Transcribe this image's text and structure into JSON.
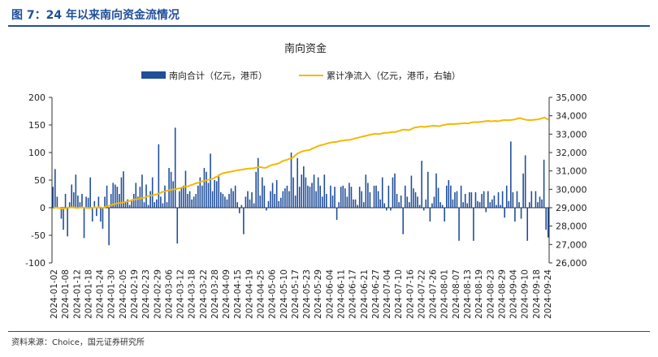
{
  "figure": {
    "title": "图 7：24 年以来南向资金流情况",
    "source": "资料来源：Choice，国元证券研究所"
  },
  "colors": {
    "bar": "#1f4e9a",
    "line": "#f5b800",
    "axis": "#333333",
    "title_rule": "#1f4e9a"
  },
  "chart_data": {
    "type": "bar",
    "title": "南向资金",
    "legend_position": "top",
    "grid": false,
    "ylim": [
      -100,
      200
    ],
    "yticks": [
      -100,
      -50,
      0,
      50,
      100,
      150,
      200
    ],
    "y2lim": [
      26000,
      35000
    ],
    "y2ticks": [
      "26,000",
      "27,000",
      "28,000",
      "29,000",
      "30,000",
      "31,000",
      "32,000",
      "33,000",
      "34,000",
      "35,000"
    ],
    "x_tick_labels": [
      "2024-01-02",
      "2024-01-08",
      "2024-01-12",
      "2024-01-18",
      "2024-01-24",
      "2024-01-30",
      "2024-02-05",
      "2024-02-19",
      "2024-02-23",
      "2024-02-29",
      "2024-03-06",
      "2024-03-12",
      "2024-03-18",
      "2024-03-22",
      "2024-03-28",
      "2024-04-09",
      "2024-04-15",
      "2024-04-19",
      "2024-04-25",
      "2024-05-06",
      "2024-05-10",
      "2024-05-17",
      "2024-05-23",
      "2024-05-29",
      "2024-06-04",
      "2024-06-11",
      "2024-06-17",
      "2024-06-21",
      "2024-06-27",
      "2024-07-04",
      "2024-07-10",
      "2024-07-16",
      "2024-07-22",
      "2024-07-26",
      "2024-08-01",
      "2024-08-07",
      "2024-08-13",
      "2024-08-19",
      "2024-08-23",
      "2024-08-29",
      "2024-09-04",
      "2024-09-10",
      "2024-09-18",
      "2024-09-24"
    ],
    "series": [
      {
        "name": "南向合计（亿元，港币）",
        "type": "bar",
        "axis": "left",
        "values": [
          38,
          70,
          20,
          0,
          -20,
          -40,
          25,
          -52,
          10,
          42,
          28,
          60,
          22,
          10,
          25,
          -55,
          20,
          18,
          55,
          -25,
          12,
          -15,
          20,
          -25,
          -38,
          20,
          40,
          -68,
          25,
          45,
          42,
          38,
          25,
          55,
          66,
          10,
          15,
          5,
          15,
          25,
          45,
          20,
          38,
          60,
          10,
          42,
          5,
          30,
          55,
          10,
          15,
          115,
          20,
          8,
          40,
          10,
          72,
          65,
          48,
          145,
          -65,
          30,
          35,
          40,
          67,
          25,
          30,
          15,
          20,
          25,
          40,
          55,
          40,
          72,
          65,
          45,
          98,
          30,
          50,
          48,
          60,
          28,
          25,
          20,
          15,
          25,
          35,
          30,
          40,
          10,
          -10,
          5,
          -48,
          20,
          30,
          15,
          28,
          8,
          65,
          90,
          22,
          55,
          40,
          -5,
          12,
          30,
          45,
          25,
          50,
          12,
          18,
          30,
          35,
          40,
          30,
          100,
          55,
          22,
          90,
          38,
          60,
          75,
          55,
          40,
          38,
          45,
          60,
          30,
          55,
          40,
          20,
          60,
          25,
          0,
          40,
          22,
          38,
          -22,
          10,
          38,
          40,
          35,
          20,
          45,
          38,
          15,
          15,
          5,
          38,
          30,
          10,
          60,
          45,
          28,
          0,
          40,
          40,
          30,
          15,
          55,
          8,
          -5,
          40,
          -5,
          55,
          62,
          25,
          10,
          22,
          -48,
          40,
          20,
          10,
          58,
          35,
          28,
          20,
          5,
          85,
          -5,
          15,
          65,
          -25,
          8,
          20,
          62,
          36,
          10,
          5,
          -25,
          40,
          50,
          40,
          15,
          28,
          30,
          -60,
          40,
          10,
          25,
          8,
          28,
          28,
          -60,
          28,
          12,
          10,
          25,
          30,
          -8,
          30,
          10,
          15,
          22,
          5,
          28,
          5,
          30,
          -18,
          40,
          12,
          120,
          28,
          -25,
          30,
          10,
          -20,
          62,
          95,
          -60,
          10,
          30,
          0,
          30,
          10,
          20,
          15,
          87,
          -40,
          -54
        ]
      },
      {
        "name": "累计净流入（亿元，港币，右轴）",
        "type": "line",
        "axis": "right",
        "values": [
          28950,
          29000,
          29010,
          28990,
          28970,
          28950,
          28960,
          28970,
          29010,
          29000,
          29020,
          29030,
          29000,
          28990,
          28985,
          29010,
          29020,
          29005,
          29000,
          28990,
          28980,
          28990,
          29005,
          29030,
          29000,
          29040,
          29030,
          28990,
          29010,
          29050,
          29080,
          29110,
          29140,
          29170,
          29200,
          29230,
          29250,
          29255,
          29270,
          29290,
          29320,
          29340,
          29360,
          29380,
          29420,
          29450,
          29455,
          29470,
          29500,
          29520,
          29540,
          29560,
          29620,
          29650,
          29670,
          29670,
          29700,
          29720,
          29760,
          29790,
          29850,
          29870,
          29890,
          29920,
          29950,
          29970,
          29990,
          30000,
          30020,
          30040,
          30060,
          30100,
          30120,
          30150,
          30160,
          30180,
          30230,
          30250,
          30300,
          30330,
          30350,
          30390,
          30430,
          30450,
          30480,
          30510,
          30530,
          30550,
          30580,
          30620,
          30680,
          30700,
          30800,
          30850,
          30880,
          30900,
          30920,
          30940,
          30960,
          30980,
          31000,
          31020,
          31040,
          31050,
          31070,
          31090,
          31100,
          31120,
          31130,
          31135,
          31140,
          31155,
          31180,
          31200,
          31210,
          31200,
          31170,
          31170,
          31190,
          31260,
          31300,
          31330,
          31350,
          31380,
          31400,
          31440,
          31500,
          31550,
          31580,
          31600,
          31650,
          31680,
          31700,
          31800,
          31880,
          31960,
          32000,
          32050,
          32080,
          32100,
          32120,
          32130,
          32160,
          32220,
          32250,
          32300,
          32350,
          32380,
          32400,
          32430,
          32460,
          32490,
          32510,
          32540,
          32560,
          32580,
          32570,
          32600,
          32620,
          32640,
          32650,
          32670,
          32680,
          32680,
          32700,
          32720,
          32750,
          32780,
          32800,
          32830,
          32850,
          32880,
          32900,
          32920,
          32950,
          32970,
          32990,
          33010,
          33020,
          33010,
          33015,
          33030,
          33060,
          33075,
          33070,
          33080,
          33100,
          33120,
          33115,
          33120,
          33150,
          33180,
          33220,
          33240,
          33250,
          33230,
          33220,
          33250,
          33300,
          33340,
          33370,
          33370,
          33400,
          33410,
          33400,
          33390,
          33410,
          33420,
          33440,
          33450,
          33455,
          33450,
          33440,
          33430,
          33470,
          33490,
          33510,
          33530,
          33545,
          33550,
          33550,
          33545,
          33560,
          33560,
          33570,
          33580,
          33590,
          33600,
          33590,
          33580,
          33620,
          33640,
          33650,
          33660,
          33650,
          33660,
          33670,
          33680,
          33700,
          33710,
          33720,
          33700,
          33705,
          33710,
          33720,
          33700,
          33710,
          33740,
          33760,
          33770,
          33760,
          33760,
          33770,
          33780,
          33790,
          33810,
          33850,
          33870,
          33860,
          33820,
          33800,
          33780,
          33770,
          33760,
          33770,
          33780,
          33790,
          33800,
          33820,
          33850,
          33880,
          33900,
          33850,
          33780
        ]
      }
    ]
  }
}
